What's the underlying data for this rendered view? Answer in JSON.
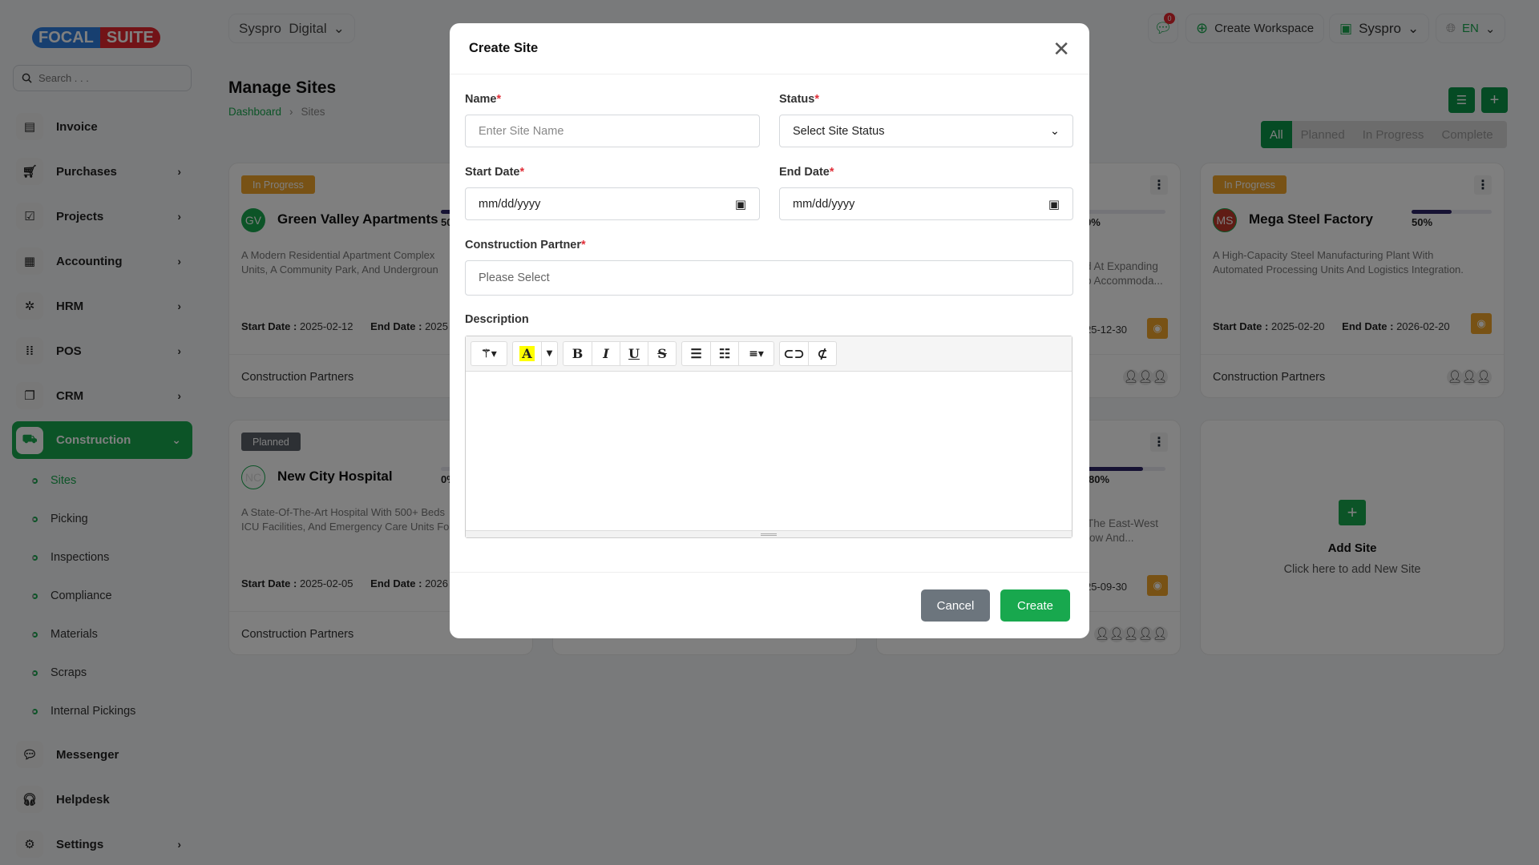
{
  "brand": {
    "logo_left": "FOCAL",
    "logo_right": "SUITE"
  },
  "search": {
    "placeholder": "Search . . ."
  },
  "sidebar": {
    "items": [
      {
        "label": "Invoice",
        "icon": "file-icon"
      },
      {
        "label": "Purchases",
        "icon": "cart-icon"
      },
      {
        "label": "Projects",
        "icon": "check-square-icon"
      },
      {
        "label": "Accounting",
        "icon": "grid-icon"
      },
      {
        "label": "HRM",
        "icon": "people-icon"
      },
      {
        "label": "POS",
        "icon": "dots-grid-icon"
      },
      {
        "label": "CRM",
        "icon": "layers-icon"
      },
      {
        "label": "Construction",
        "icon": "forklift-icon"
      }
    ],
    "sub_items": [
      "Sites",
      "Picking",
      "Inspections",
      "Compliance",
      "Materials",
      "Scraps",
      "Internal Pickings"
    ],
    "bottom_items": [
      {
        "label": "Messenger"
      },
      {
        "label": "Helpdesk"
      },
      {
        "label": "Settings"
      }
    ]
  },
  "topbar": {
    "workspace": "Syspro  Digital",
    "notifications": "0",
    "create_workspace": "Create Workspace",
    "company": "Syspro",
    "language": "EN"
  },
  "page": {
    "title": "Manage Sites",
    "breadcrumb": [
      "Dashboard",
      "Sites"
    ],
    "filters": [
      "All",
      "Planned",
      "In Progress",
      "Complete"
    ]
  },
  "cards": [
    {
      "status": "In Progress",
      "initials": "GV",
      "name": "Green Valley Apartments",
      "progress": "50%",
      "desc1": "A Modern Residential Apartment Complex",
      "desc2": "Units, A Community Park, And Undergroun",
      "start_label": "Start Date :",
      "start": "2025-02-12",
      "end_label": "End Date :",
      "end": "2025",
      "partners": "Construction Partners"
    },
    {
      "progress": "0%",
      "desc1": "d At Expanding",
      "desc2": "o Accommoda...",
      "end": "25-12-30"
    },
    {
      "status": "In Progress",
      "initials": "MS",
      "name": "Mega Steel Factory",
      "progress": "50%",
      "desc1": "A High-Capacity Steel Manufacturing Plant With",
      "desc2": "Automated Processing Units And Logistics Integration.",
      "start_label": "Start Date :",
      "start": "2025-02-20",
      "end_label": "End Date :",
      "end": "2026-02-20",
      "partners": "Construction Partners"
    },
    {
      "status": "Planned",
      "initials": "NC",
      "name": "New City Hospital",
      "progress": "0%",
      "desc1": "A State-Of-The-Art Hospital With 500+ Beds",
      "desc2": "ICU Facilities, And Emergency Care Units Fo",
      "start_label": "Start Date :",
      "start": "2025-02-05",
      "end_label": "End Date :",
      "end": "2026",
      "partners": "Construction Partners"
    },
    {
      "progress": "80%",
      "desc1": "The East-West",
      "desc2": "low And...",
      "end": "25-09-30"
    }
  ],
  "progress_values": {
    "green_valley": 0.5,
    "card_top_hidden": 0,
    "mega_steel": 0.5,
    "new_city": 0,
    "card_bottom_hidden": 0.8
  },
  "add_site": {
    "title": "Add Site",
    "subtitle": "Click here to add New Site"
  },
  "modal": {
    "title": "Create Site",
    "name_label": "Name",
    "name_placeholder": "Enter Site Name",
    "status_label": "Status",
    "status_value": "Select Site Status",
    "start_label": "Start Date",
    "start_placeholder": "mm/dd/yyyy",
    "end_label": "End Date",
    "end_placeholder": "mm/dd/yyyy",
    "partner_label": "Construction Partner",
    "partner_placeholder": "Please Select",
    "description_label": "Description",
    "required_mark": "*",
    "cancel": "Cancel",
    "create": "Create"
  },
  "colors": {
    "primary": "#18a84e",
    "in_progress": "#f0a52a",
    "planned": "#5a6068",
    "progress_bar": "#2d2466",
    "required": "#e0303a"
  }
}
